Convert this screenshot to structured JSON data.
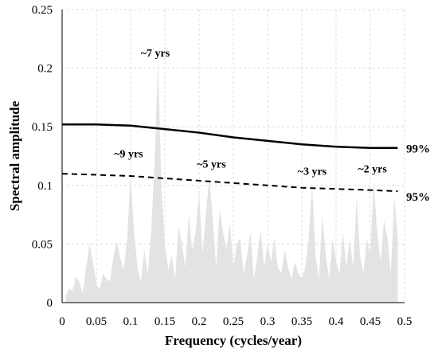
{
  "chart_data": {
    "type": "area",
    "xlabel": "Frequency (cycles/year)",
    "ylabel": "Spectral amplitude",
    "xlim": [
      0,
      0.5
    ],
    "ylim": [
      0,
      0.25
    ],
    "xticks": [
      "0",
      "0.05",
      "0.1",
      "0.15",
      "0.2",
      "0.25",
      "0.3",
      "0.35",
      "0.4",
      "0.45",
      "0.5"
    ],
    "yticks": [
      "0",
      "0.05",
      "0.1",
      "0.15",
      "0.2",
      "0.25"
    ],
    "grid": "dashed, light gray",
    "fill_color": "#e3e3e3",
    "spectrum": {
      "x": [
        0.005,
        0.01,
        0.015,
        0.02,
        0.025,
        0.03,
        0.035,
        0.04,
        0.045,
        0.05,
        0.055,
        0.06,
        0.065,
        0.07,
        0.075,
        0.08,
        0.085,
        0.09,
        0.095,
        0.1,
        0.105,
        0.11,
        0.115,
        0.12,
        0.125,
        0.13,
        0.135,
        0.14,
        0.145,
        0.15,
        0.155,
        0.16,
        0.165,
        0.17,
        0.175,
        0.18,
        0.185,
        0.19,
        0.195,
        0.2,
        0.205,
        0.21,
        0.215,
        0.22,
        0.225,
        0.23,
        0.235,
        0.24,
        0.245,
        0.25,
        0.255,
        0.26,
        0.265,
        0.27,
        0.275,
        0.28,
        0.285,
        0.29,
        0.295,
        0.3,
        0.305,
        0.31,
        0.315,
        0.32,
        0.325,
        0.33,
        0.335,
        0.34,
        0.345,
        0.35,
        0.355,
        0.36,
        0.365,
        0.37,
        0.375,
        0.38,
        0.385,
        0.39,
        0.395,
        0.4,
        0.405,
        0.41,
        0.415,
        0.42,
        0.425,
        0.43,
        0.435,
        0.44,
        0.445,
        0.45,
        0.455,
        0.46,
        0.465,
        0.47,
        0.475,
        0.48,
        0.485,
        0.49
      ],
      "y": [
        0.005,
        0.012,
        0.01,
        0.022,
        0.018,
        0.008,
        0.03,
        0.05,
        0.035,
        0.015,
        0.012,
        0.025,
        0.02,
        0.018,
        0.04,
        0.052,
        0.038,
        0.028,
        0.055,
        0.11,
        0.06,
        0.03,
        0.018,
        0.045,
        0.025,
        0.06,
        0.12,
        0.205,
        0.1,
        0.05,
        0.028,
        0.04,
        0.02,
        0.065,
        0.05,
        0.03,
        0.075,
        0.045,
        0.06,
        0.095,
        0.042,
        0.075,
        0.108,
        0.07,
        0.03,
        0.08,
        0.06,
        0.045,
        0.068,
        0.03,
        0.05,
        0.055,
        0.025,
        0.04,
        0.06,
        0.02,
        0.04,
        0.062,
        0.03,
        0.05,
        0.035,
        0.055,
        0.03,
        0.025,
        0.045,
        0.03,
        0.02,
        0.035,
        0.025,
        0.02,
        0.03,
        0.055,
        0.102,
        0.04,
        0.02,
        0.075,
        0.04,
        0.02,
        0.055,
        0.035,
        0.025,
        0.06,
        0.03,
        0.055,
        0.03,
        0.09,
        0.04,
        0.025,
        0.055,
        0.04,
        0.103,
        0.06,
        0.035,
        0.07,
        0.055,
        0.025,
        0.09,
        0.055
      ]
    },
    "series": [
      {
        "name": "99%",
        "style": "solid",
        "x": [
          0.0,
          0.05,
          0.1,
          0.15,
          0.2,
          0.25,
          0.3,
          0.35,
          0.4,
          0.45,
          0.49
        ],
        "values": [
          0.152,
          0.152,
          0.151,
          0.148,
          0.145,
          0.141,
          0.138,
          0.135,
          0.133,
          0.132,
          0.132
        ]
      },
      {
        "name": "95%",
        "style": "dashed",
        "x": [
          0.0,
          0.05,
          0.1,
          0.15,
          0.2,
          0.25,
          0.3,
          0.35,
          0.4,
          0.45,
          0.49
        ],
        "values": [
          0.11,
          0.109,
          0.108,
          0.106,
          0.104,
          0.102,
          0.1,
          0.098,
          0.097,
          0.096,
          0.095
        ]
      }
    ],
    "annotations": [
      {
        "text": "~7 yrs",
        "x": 0.136,
        "y": 0.21
      },
      {
        "text": "~9 yrs",
        "x": 0.097,
        "y": 0.124
      },
      {
        "text": "~5 yrs",
        "x": 0.218,
        "y": 0.115
      },
      {
        "text": "~3 yrs",
        "x": 0.365,
        "y": 0.109
      },
      {
        "text": "~2 yrs",
        "x": 0.453,
        "y": 0.111
      }
    ]
  }
}
